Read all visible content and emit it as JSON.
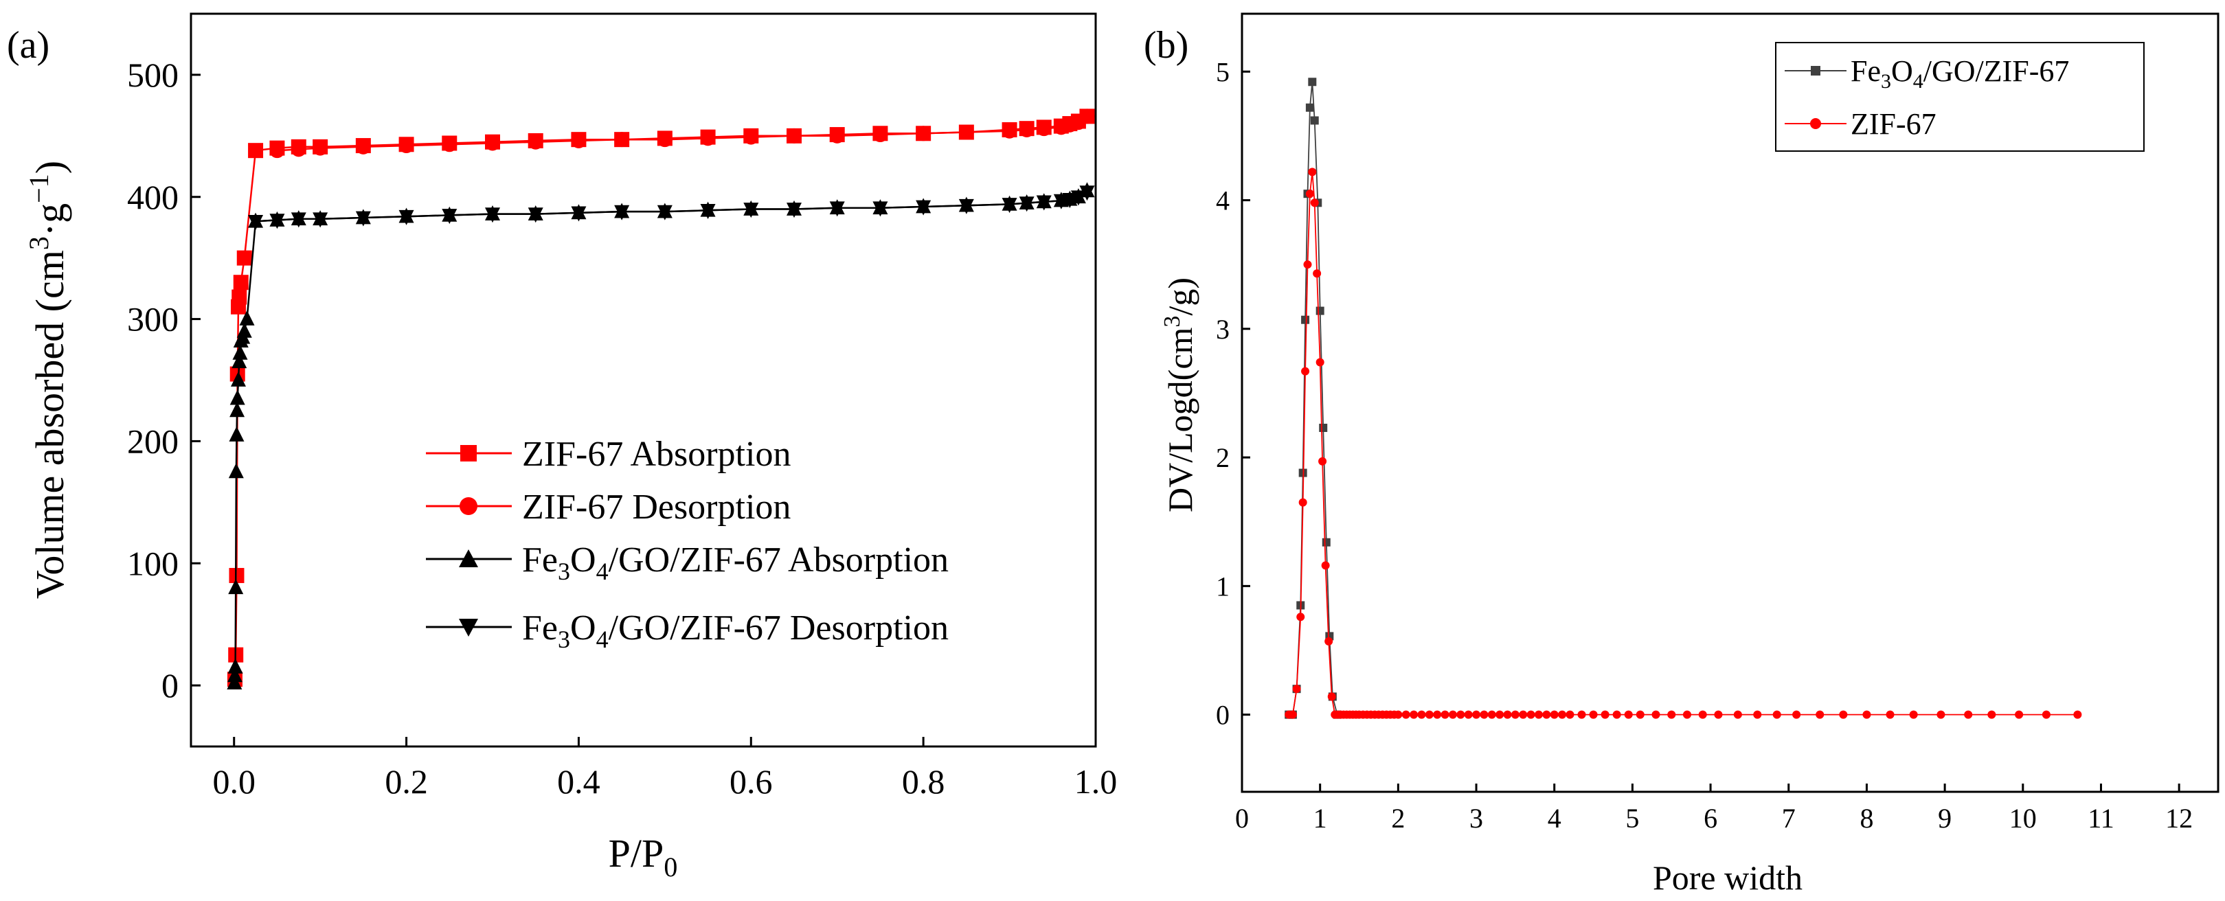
{
  "chart_data": [
    {
      "panel": "(a)",
      "type": "scatter",
      "xlabel": "P/P0",
      "xlabel_main": "P/P",
      "xlabel_sub": "0",
      "ylabel": "Volume absorbed (cm3·g−1)",
      "ylabel_parts": {
        "pre": "Volume absorbed (cm",
        "sup1": "3",
        "mid": "·g",
        "sup2": "−1",
        "post": ")"
      },
      "xlim": [
        -0.05,
        1.0
      ],
      "ylim": [
        -50,
        550
      ],
      "xticks": [
        0.0,
        0.2,
        0.4,
        0.6,
        0.8,
        1.0
      ],
      "xtick_labels": [
        "0.0",
        "0.2",
        "0.4",
        "0.6",
        "0.8",
        "1.0"
      ],
      "yticks": [
        0,
        100,
        200,
        300,
        400,
        500
      ],
      "ytick_labels": [
        "0",
        "100",
        "200",
        "300",
        "400",
        "500"
      ],
      "legend_position": "lower-right",
      "series": [
        {
          "name": "ZIF-67 Absorption",
          "color": "#ff0000",
          "marker": "square",
          "x": [
            0.001,
            0.002,
            0.003,
            0.004,
            0.005,
            0.006,
            0.008,
            0.012,
            0.025,
            0.05,
            0.075,
            0.1,
            0.15,
            0.2,
            0.25,
            0.3,
            0.35,
            0.4,
            0.45,
            0.5,
            0.55,
            0.6,
            0.65,
            0.7,
            0.75,
            0.8,
            0.85,
            0.9,
            0.92,
            0.94,
            0.96,
            0.97,
            0.98,
            0.99
          ],
          "y": [
            5,
            25,
            90,
            255,
            310,
            318,
            330,
            350,
            438,
            440,
            441,
            441,
            442,
            443,
            444,
            445,
            446,
            447,
            447,
            448,
            449,
            450,
            450,
            451,
            452,
            452,
            453,
            455,
            456,
            457,
            458,
            460,
            462,
            466
          ]
        },
        {
          "name": "ZIF-67 Desorption",
          "color": "#ff0000",
          "marker": "circle",
          "x": [
            0.99,
            0.98,
            0.97,
            0.96,
            0.94,
            0.92,
            0.9,
            0.85,
            0.8,
            0.75,
            0.7,
            0.65,
            0.6,
            0.55,
            0.5,
            0.45,
            0.4,
            0.35,
            0.3,
            0.25,
            0.2,
            0.15,
            0.1,
            0.075,
            0.05
          ],
          "y": [
            466,
            461,
            459,
            457,
            456,
            455,
            454,
            453,
            452,
            451,
            450,
            450,
            449,
            448,
            447,
            447,
            446,
            445,
            444,
            443,
            442,
            441,
            440,
            439,
            438
          ]
        },
        {
          "name": "Fe3O4/GO/ZIF-67 Absorption",
          "name_parts": {
            "pre": "Fe",
            "sub1": "3",
            "mid": "O",
            "sub2": "4",
            "post": "/GO/ZIF-67 Absorption"
          },
          "color": "#000000",
          "marker": "triangle-up",
          "x": [
            0.0005,
            0.001,
            0.0015,
            0.002,
            0.0025,
            0.003,
            0.0035,
            0.004,
            0.005,
            0.006,
            0.007,
            0.008,
            0.01,
            0.012,
            0.015,
            0.025,
            0.05,
            0.075,
            0.1,
            0.15,
            0.2,
            0.25,
            0.3,
            0.35,
            0.4,
            0.45,
            0.5,
            0.55,
            0.6,
            0.65,
            0.7,
            0.75,
            0.8,
            0.85,
            0.9,
            0.92,
            0.94,
            0.96,
            0.97,
            0.98,
            0.99
          ],
          "y": [
            2,
            8,
            15,
            80,
            175,
            205,
            225,
            235,
            250,
            265,
            272,
            282,
            285,
            290,
            300,
            380,
            381,
            382,
            382,
            383,
            384,
            385,
            386,
            386,
            387,
            388,
            388,
            389,
            390,
            390,
            391,
            391,
            392,
            393,
            394,
            395,
            396,
            397,
            398,
            400,
            405
          ]
        },
        {
          "name": "Fe3O4/GO/ZIF-67 Desorption",
          "name_parts": {
            "pre": "Fe",
            "sub1": "3",
            "mid": "O",
            "sub2": "4",
            "post": "/GO/ZIF-67 Desorption"
          },
          "color": "#000000",
          "marker": "triangle-down",
          "x": [
            0.99,
            0.98,
            0.97,
            0.96,
            0.94,
            0.92,
            0.9,
            0.85,
            0.8,
            0.75,
            0.7,
            0.65,
            0.6,
            0.55,
            0.5,
            0.45,
            0.4,
            0.35,
            0.3,
            0.25,
            0.2,
            0.15,
            0.1,
            0.075,
            0.05,
            0.025
          ],
          "y": [
            404,
            400,
            398,
            397,
            396,
            395,
            394,
            393,
            392,
            391,
            391,
            390,
            390,
            389,
            388,
            388,
            387,
            386,
            386,
            385,
            384,
            383,
            382,
            382,
            381,
            380
          ]
        }
      ]
    },
    {
      "panel": "(b)",
      "type": "line",
      "xlabel": "Pore width",
      "ylabel": "DV/Logd(cm3/g)",
      "ylabel_parts": {
        "pre": "DV/Logd(cm",
        "sup": "3",
        "post": "/g)"
      },
      "xlim": [
        0,
        12.5
      ],
      "ylim": [
        -0.6,
        5.45
      ],
      "xticks": [
        0,
        1,
        2,
        3,
        4,
        5,
        6,
        7,
        8,
        9,
        10,
        11,
        12
      ],
      "xtick_labels": [
        "0",
        "1",
        "2",
        "3",
        "4",
        "5",
        "6",
        "7",
        "8",
        "9",
        "10",
        "11",
        "12"
      ],
      "yticks": [
        0,
        1,
        2,
        3,
        4,
        5
      ],
      "ytick_labels": [
        "0",
        "1",
        "2",
        "3",
        "4",
        "5"
      ],
      "legend_position": "top-right",
      "series": [
        {
          "name": "Fe3O4/GO/ZIF-67",
          "name_parts": {
            "pre": "Fe",
            "sub1": "3",
            "mid": "O",
            "sub2": "4",
            "post": "/GO/ZIF-67"
          },
          "color": "#404040",
          "marker": "square",
          "x": [
            0.6,
            0.65,
            0.7,
            0.75,
            0.78,
            0.81,
            0.84,
            0.87,
            0.9,
            0.93,
            0.97,
            1.0,
            1.04,
            1.08,
            1.12,
            1.16,
            1.22
          ],
          "y": [
            0,
            0,
            0.2,
            0.85,
            1.88,
            3.07,
            4.05,
            4.72,
            4.92,
            4.62,
            3.98,
            3.14,
            2.23,
            1.34,
            0.61,
            0.14,
            0
          ]
        },
        {
          "name": "ZIF-67",
          "color": "#ff0000",
          "marker": "circle",
          "x": [
            0.6,
            0.65,
            0.7,
            0.75,
            0.78,
            0.81,
            0.84,
            0.87,
            0.9,
            0.93,
            0.96,
            1.0,
            1.03,
            1.07,
            1.11,
            1.15,
            1.19,
            1.22,
            1.26,
            1.3,
            1.34,
            1.38,
            1.42,
            1.46,
            1.5,
            1.55,
            1.6,
            1.65,
            1.7,
            1.75,
            1.8,
            1.85,
            1.9,
            1.95,
            2.0,
            2.1,
            2.2,
            2.3,
            2.4,
            2.5,
            2.6,
            2.7,
            2.8,
            2.9,
            3.0,
            3.1,
            3.2,
            3.3,
            3.4,
            3.5,
            3.6,
            3.7,
            3.8,
            3.9,
            4.0,
            4.1,
            4.2,
            4.35,
            4.5,
            4.65,
            4.8,
            4.95,
            5.1,
            5.3,
            5.5,
            5.7,
            5.9,
            6.1,
            6.35,
            6.6,
            6.85,
            7.1,
            7.4,
            7.7,
            8.0,
            8.3,
            8.6,
            8.95,
            9.3,
            9.6,
            9.95,
            10.3,
            10.7
          ],
          "y": [
            0,
            0,
            0.2,
            0.76,
            1.65,
            2.67,
            3.5,
            4.05,
            4.22,
            3.98,
            3.43,
            2.74,
            1.97,
            1.16,
            0.57,
            0.14,
            0,
            0,
            0,
            0,
            0,
            0,
            0,
            0,
            0,
            0,
            0,
            0,
            0,
            0,
            0,
            0,
            0,
            0,
            0,
            0,
            0,
            0,
            0,
            0,
            0,
            0,
            0,
            0,
            0,
            0,
            0,
            0,
            0,
            0,
            0,
            0,
            0,
            0,
            0,
            0,
            0,
            0,
            0,
            0,
            0,
            0,
            0,
            0,
            0,
            0,
            0,
            0,
            0,
            0,
            0,
            0,
            0,
            0,
            0,
            0,
            0,
            0,
            0,
            0,
            0,
            0,
            0
          ]
        }
      ]
    }
  ]
}
